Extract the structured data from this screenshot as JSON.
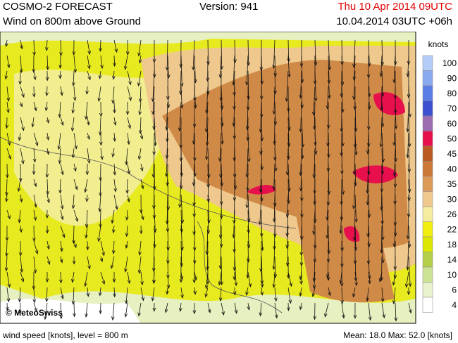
{
  "header": {
    "title": "COSMO-2 FORECAST",
    "version": "Version: 941",
    "valid_time": "Thu 10 Apr 2014 09UTC",
    "subtitle": "Wind on 800m above Ground",
    "run": "10.04.2014 03UTC +06h"
  },
  "legend": {
    "title": "knots",
    "entries": [
      {
        "label": 100,
        "color": "#b4ccf8"
      },
      {
        "label": 90,
        "color": "#8aaaf0"
      },
      {
        "label": 80,
        "color": "#5a7ee6"
      },
      {
        "label": 70,
        "color": "#3c50d0"
      },
      {
        "label": 60,
        "color": "#9c6cb0"
      },
      {
        "label": 50,
        "color": "#e8104c"
      },
      {
        "label": 45,
        "color": "#b85a22"
      },
      {
        "label": 40,
        "color": "#cc7838"
      },
      {
        "label": 35,
        "color": "#dc9a58"
      },
      {
        "label": 30,
        "color": "#eec88c"
      },
      {
        "label": 26,
        "color": "#f6eca0"
      },
      {
        "label": 22,
        "color": "#f2ee10"
      },
      {
        "label": 18,
        "color": "#dce600"
      },
      {
        "label": 14,
        "color": "#b4d048"
      },
      {
        "label": 10,
        "color": "#cce294"
      },
      {
        "label": 6,
        "color": "#e8f2cc"
      },
      {
        "label": 4,
        "color": "#ffffff"
      }
    ]
  },
  "copyright": "© MeteoSwiss",
  "footer": {
    "left": "wind speed [knots], level = 800 m",
    "right": "Mean:  18.0 Max:  52.0 [knots]"
  }
}
